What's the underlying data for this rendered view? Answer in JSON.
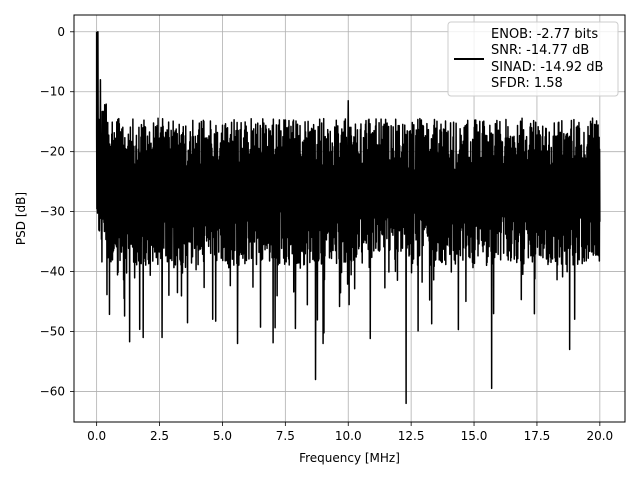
{
  "chart_data": {
    "type": "line",
    "title": "",
    "xlabel": "Frequency [MHz]",
    "ylabel": "PSD [dB]",
    "xlim": [
      -0.9,
      21.0
    ],
    "ylim": [
      -65.1,
      2.8
    ],
    "xticks": [
      0.0,
      2.5,
      5.0,
      7.5,
      10.0,
      12.5,
      15.0,
      17.5,
      20.0
    ],
    "xtick_labels": [
      "0.0",
      "2.5",
      "5.0",
      "7.5",
      "10.0",
      "12.5",
      "15.0",
      "17.5",
      "20.0"
    ],
    "yticks": [
      0,
      -10,
      -20,
      -30,
      -40,
      -50,
      -60
    ],
    "ytick_labels": [
      "0",
      "−10",
      "−20",
      "−30",
      "−40",
      "−50",
      "−60"
    ],
    "grid": true,
    "legend_position": "top-right",
    "legend": {
      "lines": [
        "ENOB: -2.77 bits",
        "SNR: -14.77 dB",
        "SINAD: -14.92 dB",
        "SFDR: 1.58"
      ]
    },
    "series": [
      {
        "color": "#000000",
        "x_range": [
          0.0,
          20.0
        ],
        "peak": {
          "x": 0.0,
          "y": 0.0
        },
        "band": {
          "upper": -18,
          "lower": -35
        },
        "notable_spikes": [
          {
            "x": 0.05,
            "y": 0.0
          },
          {
            "x": 0.15,
            "y": -8
          },
          {
            "x": 10.0,
            "y": -11.5
          },
          {
            "x": 12.3,
            "y": -62
          },
          {
            "x": 15.7,
            "y": -59.5
          },
          {
            "x": 8.7,
            "y": -58
          },
          {
            "x": 18.8,
            "y": -53
          },
          {
            "x": 5.6,
            "y": -52
          },
          {
            "x": 1.85,
            "y": -51
          },
          {
            "x": 2.6,
            "y": -51
          },
          {
            "x": 9.0,
            "y": -52
          },
          {
            "x": 7.9,
            "y": -49.5
          }
        ]
      }
    ]
  }
}
